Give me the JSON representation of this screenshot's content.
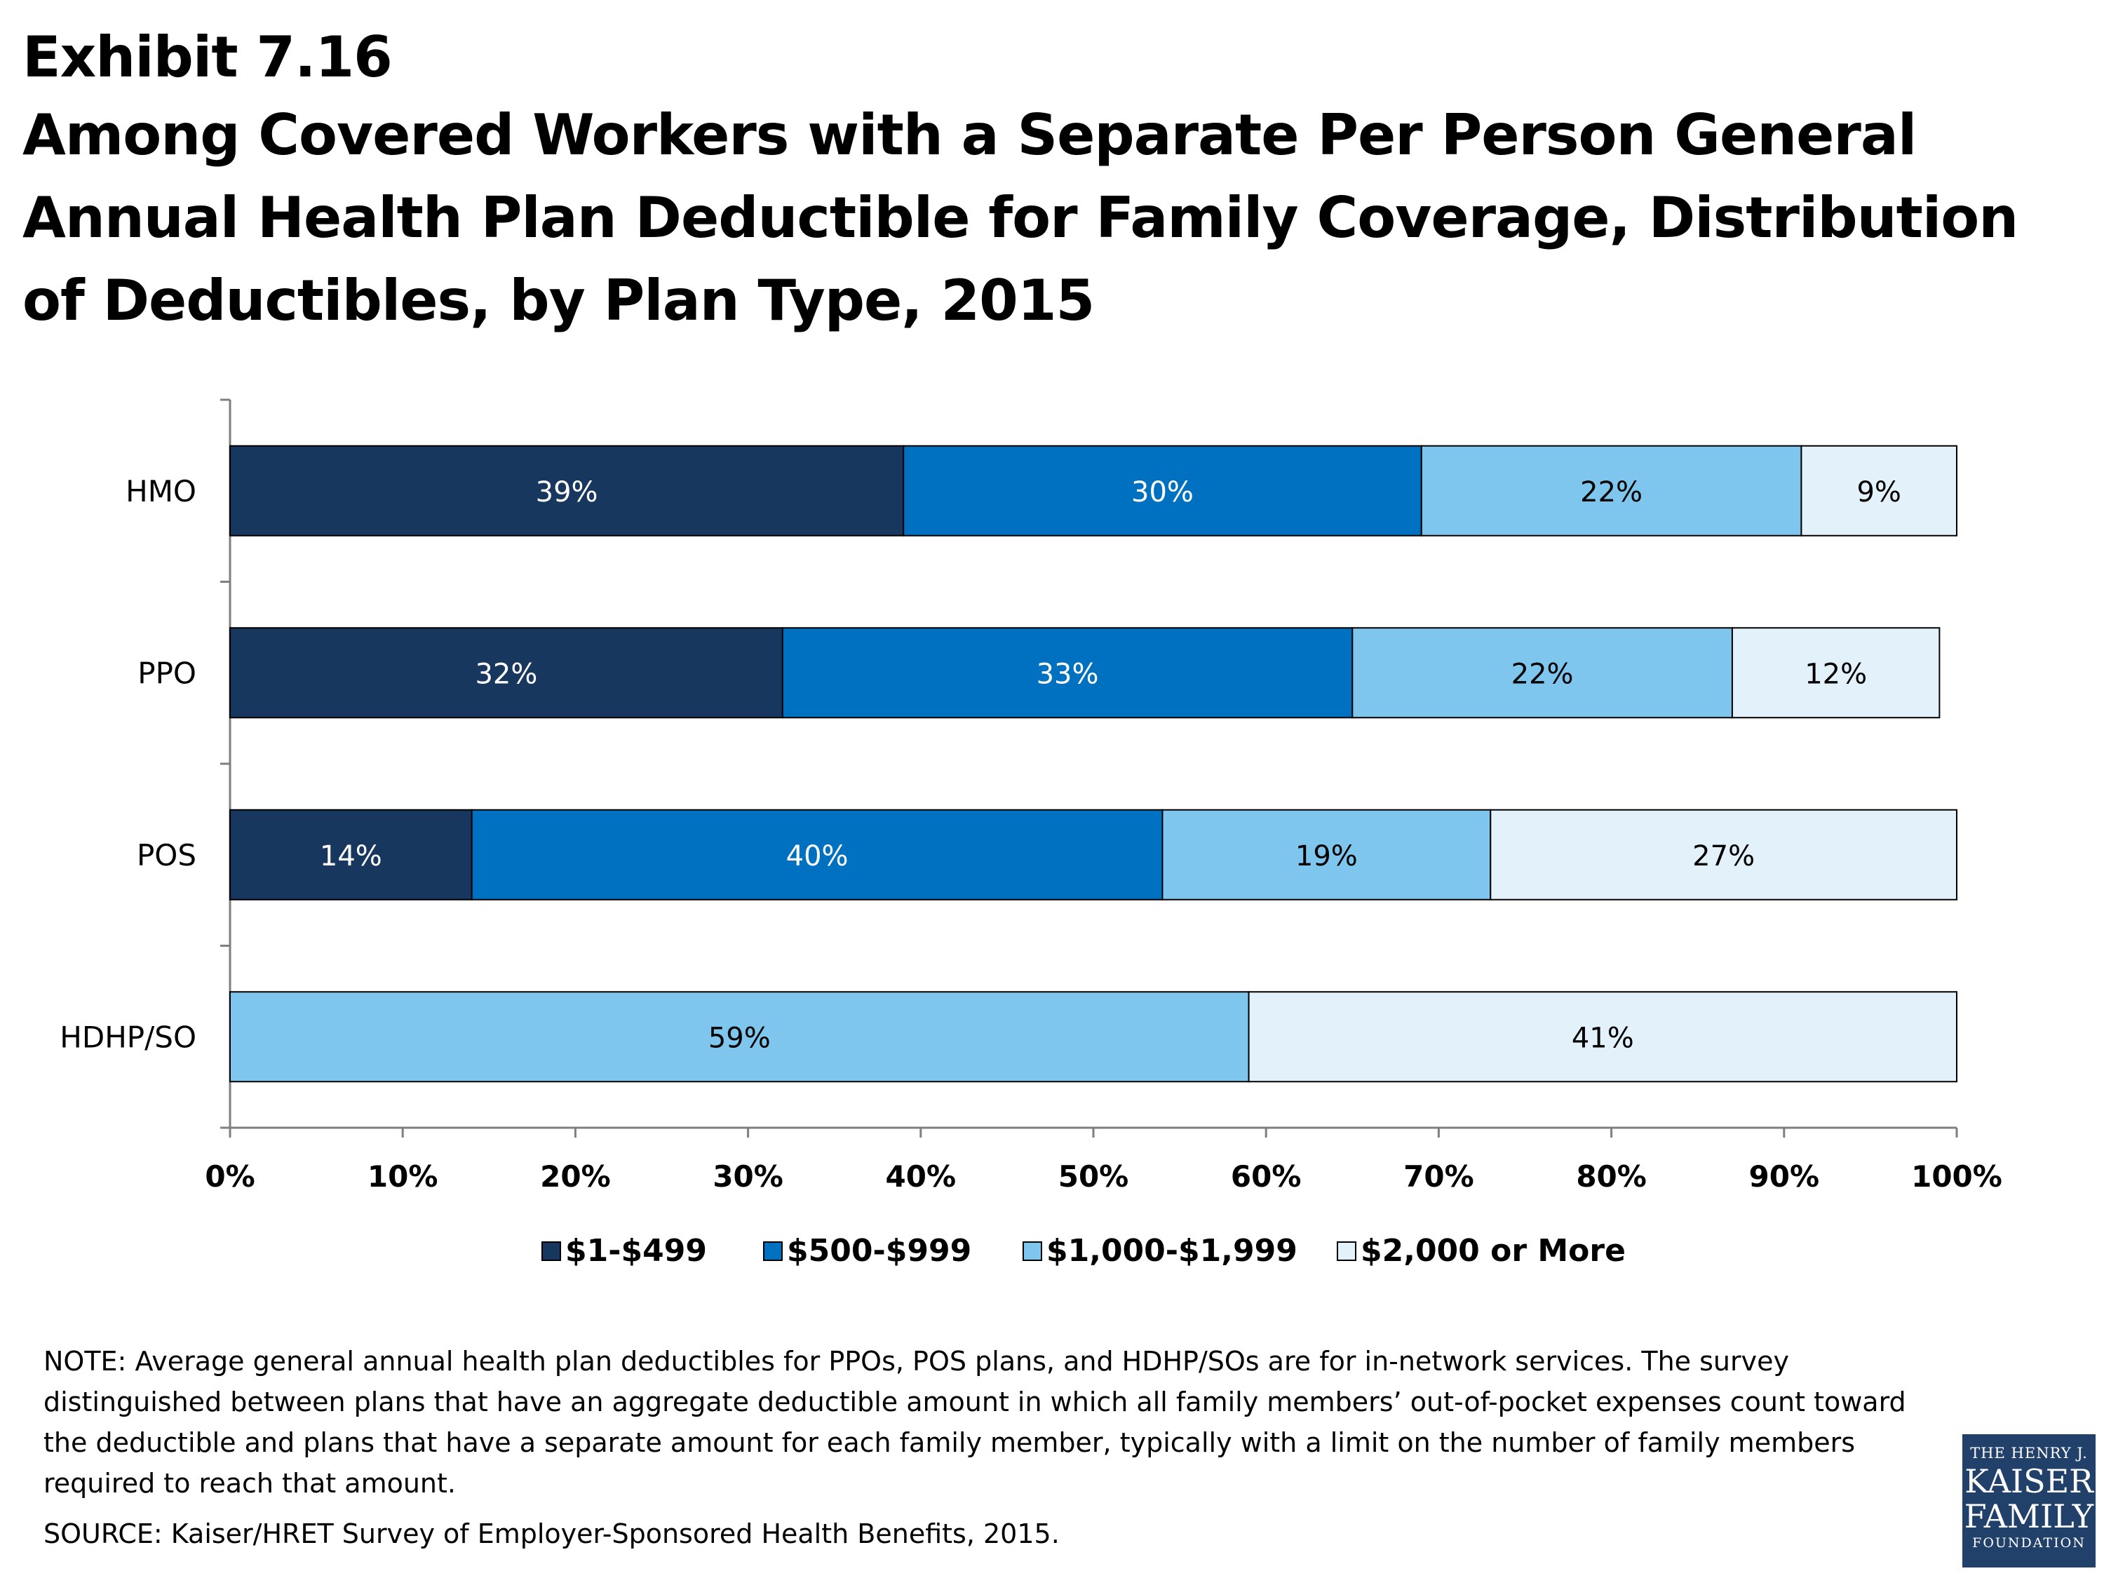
{
  "exhibit": "Exhibit 7.16",
  "title": "Among Covered Workers with a Separate Per Person General Annual Health Plan Deductible for Family Coverage, Distribution of Deductibles, by Plan Type, 2015",
  "chart_data": {
    "type": "bar",
    "orientation": "horizontal",
    "stacked": true,
    "categories": [
      "HMO",
      "PPO",
      "POS",
      "HDHP/SO"
    ],
    "series": [
      {
        "name": "$1-$499",
        "color": "#17375e",
        "values": [
          39,
          32,
          14,
          0
        ],
        "labels": [
          "39%",
          "32%",
          "14%",
          ""
        ]
      },
      {
        "name": "$500-$999",
        "color": "#0070c0",
        "values": [
          30,
          33,
          40,
          0
        ],
        "labels": [
          "30%",
          "33%",
          "40%",
          ""
        ]
      },
      {
        "name": "$1,000-$1,999",
        "color": "#7ec6ee",
        "values": [
          22,
          22,
          19,
          59
        ],
        "labels": [
          "22%",
          "22%",
          "19%",
          "59%"
        ]
      },
      {
        "name": "$2,000 or More",
        "color": "#e3f2fa",
        "values": [
          9,
          12,
          27,
          41
        ],
        "labels": [
          "9%",
          "12%",
          "27%",
          "41%"
        ]
      }
    ],
    "label_colors": [
      "#ffffff",
      "#ffffff",
      "#000000",
      "#000000"
    ],
    "xlim": [
      0,
      100
    ],
    "xticks": [
      "0%",
      "10%",
      "20%",
      "30%",
      "40%",
      "50%",
      "60%",
      "70%",
      "80%",
      "90%",
      "100%"
    ],
    "grid": false,
    "legend_position": "bottom"
  },
  "note": "NOTE: Average general annual health plan deductibles for PPOs, POS plans, and HDHP/SOs are for in-network services. The survey distinguished between plans that have an aggregate deductible amount in which all family members’ out-of-pocket expenses count toward the deductible and plans that have a separate amount for each family member, typically with a limit on the number of family members required to reach that amount.",
  "source": "SOURCE: Kaiser/HRET Survey of Employer-Sponsored Health Benefits, 2015.",
  "logo": {
    "line1": "THE HENRY J.",
    "line2": "KAISER",
    "line3": "FAMILY",
    "line4": "FOUNDATION"
  }
}
